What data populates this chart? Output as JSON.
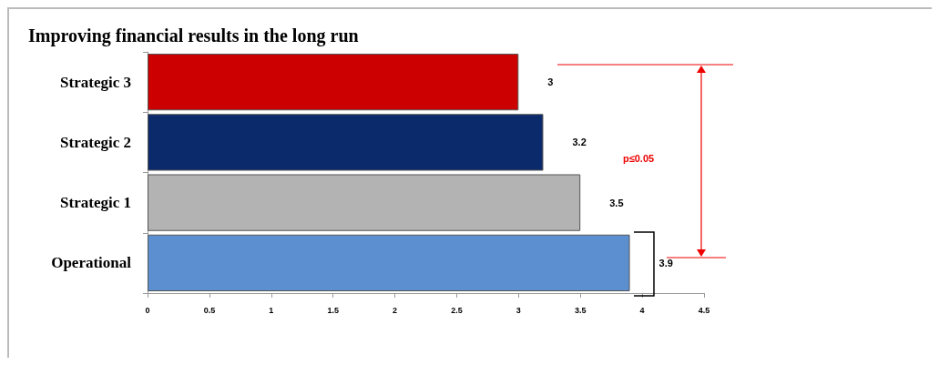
{
  "chart_data": {
    "type": "bar",
    "orientation": "horizontal",
    "title": "Improving financial results in the long run",
    "categories": [
      "Strategic 3",
      "Strategic 2",
      "Strategic 1",
      "Operational"
    ],
    "values": [
      3,
      3.2,
      3.5,
      3.9
    ],
    "colors": [
      "#cc0000",
      "#0b2a6b",
      "#b3b3b3",
      "#5b8fcf"
    ],
    "xlim": [
      0,
      4.5
    ],
    "xticks": [
      0,
      0.5,
      1,
      1.5,
      2,
      2.5,
      3,
      3.5,
      4,
      4.5
    ],
    "data_labels": true,
    "grid": false,
    "annotations": [
      "p≤0.05"
    ]
  }
}
